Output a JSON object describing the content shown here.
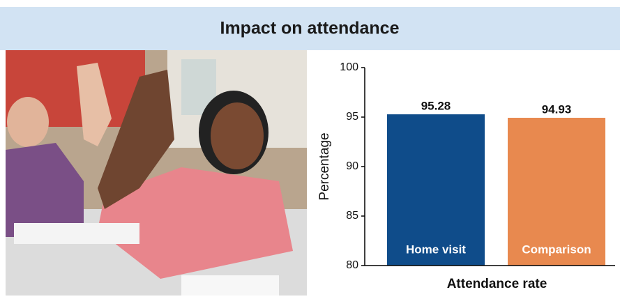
{
  "chart_data": {
    "type": "bar",
    "title": "Impact on attendance",
    "categories": [
      "Home visit",
      "Comparison"
    ],
    "values": [
      95.28,
      94.93
    ],
    "colors": [
      "#0f4c8a",
      "#e8894f"
    ],
    "ylim": [
      80,
      100
    ],
    "yticks": [
      80,
      85,
      90,
      95,
      100
    ],
    "y_label": "Percentage",
    "x_label": "Attendance rate",
    "grid": false
  }
}
